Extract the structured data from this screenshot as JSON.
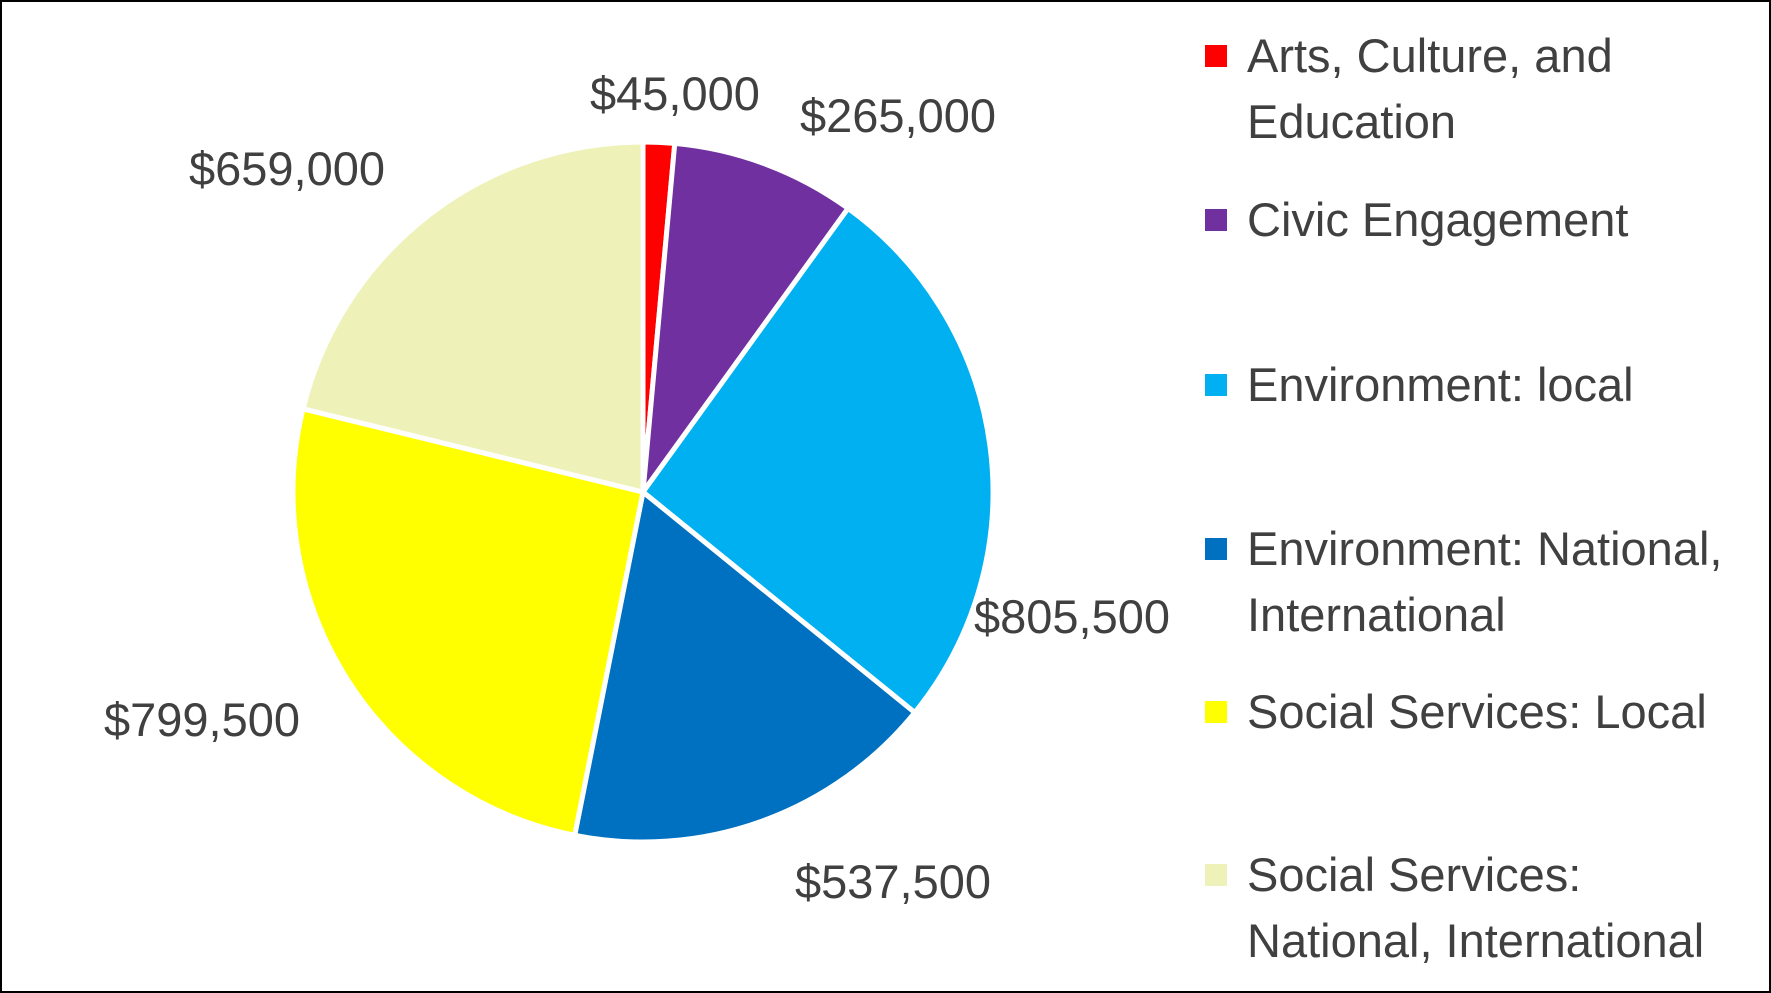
{
  "chart_data": {
    "type": "pie",
    "title": "",
    "legend_position": "right",
    "start_angle_deg": 0,
    "direction": "clockwise",
    "slices": [
      {
        "name": "Arts, Culture, and Education",
        "value": 45000,
        "label": "$45,000",
        "color": "#FF0000"
      },
      {
        "name": "Civic Engagement",
        "value": 265000,
        "label": "$265,000",
        "color": "#7030A0"
      },
      {
        "name": "Environment: local",
        "value": 805500,
        "label": "$805,500",
        "color": "#00B0F0"
      },
      {
        "name": "Environment: National, International",
        "value": 537500,
        "label": "$537,500",
        "color": "#0070C0"
      },
      {
        "name": "Social Services: Local",
        "value": 799500,
        "label": "$799,500",
        "color": "#FFFF00"
      },
      {
        "name": "Social Services: National, International",
        "value": 659000,
        "label": "$659,000",
        "color": "#EEF2B8"
      }
    ]
  }
}
